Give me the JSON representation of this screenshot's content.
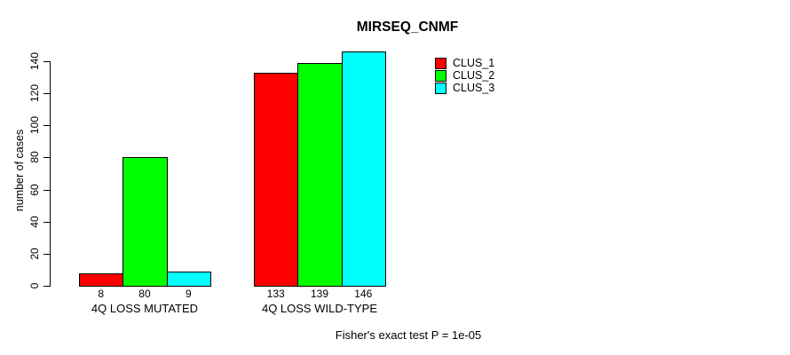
{
  "title": "MIRSEQ_CNMF",
  "ylabel": "number of cases",
  "footer": "Fisher's exact test P = 1e-05",
  "legend": {
    "items": [
      {
        "label": "CLUS_1",
        "color": "#ff0000"
      },
      {
        "label": "CLUS_2",
        "color": "#00ff00"
      },
      {
        "label": "CLUS_3",
        "color": "#00ffff"
      }
    ]
  },
  "chart_data": {
    "type": "bar",
    "title": "MIRSEQ_CNMF",
    "xlabel": "",
    "ylabel": "number of cases",
    "categories": [
      "4Q LOSS MUTATED",
      "4Q LOSS WILD-TYPE"
    ],
    "series": [
      {
        "name": "CLUS_1",
        "color": "#ff0000",
        "values": [
          8,
          133
        ]
      },
      {
        "name": "CLUS_2",
        "color": "#00ff00",
        "values": [
          80,
          139
        ]
      },
      {
        "name": "CLUS_3",
        "color": "#00ffff",
        "values": [
          9,
          146
        ]
      }
    ],
    "bar_value_labels": [
      [
        8,
        80,
        9
      ],
      [
        133,
        139,
        146
      ]
    ],
    "yticks": [
      0,
      20,
      40,
      60,
      80,
      100,
      120,
      140
    ],
    "ylim": [
      0,
      146
    ],
    "grid": false,
    "legend_position": "top-right",
    "legend_box": false,
    "bar_border_color": "#000000",
    "annotation": "Fisher's exact test P = 1e-05"
  }
}
